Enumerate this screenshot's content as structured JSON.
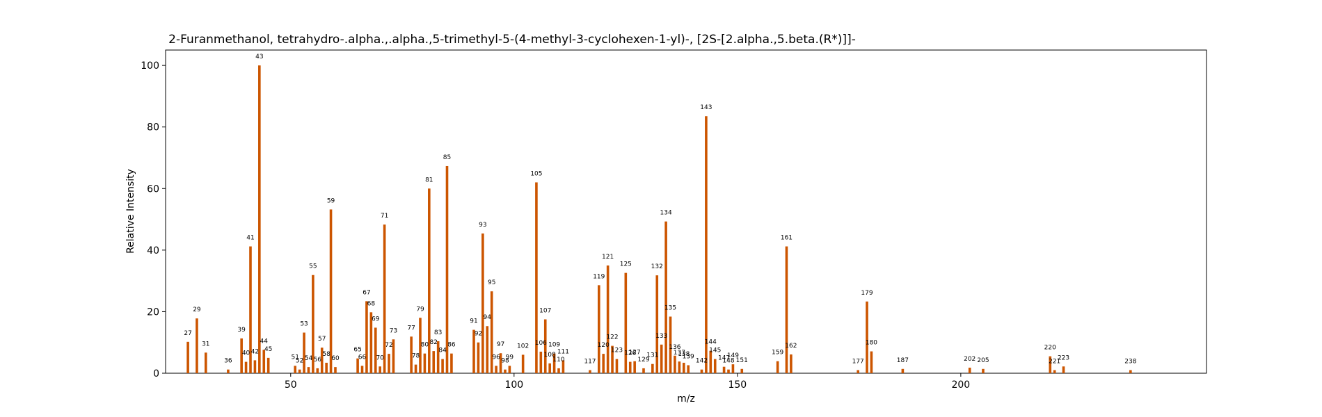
{
  "chart_data": {
    "type": "bar",
    "title": "2-Furanmethanol, tetrahydro-.alpha.,.alpha.,5-trimethyl-5-(4-methyl-3-cyclohexen-1-yl)-, [2S-[2.alpha.,5.beta.(R*)]]-",
    "xlabel": "m/z",
    "ylabel": "Relative Intensity",
    "xlim": [
      22,
      255
    ],
    "ylim": [
      0,
      105
    ],
    "xticks": [
      50,
      100,
      150,
      200
    ],
    "yticks": [
      0,
      20,
      40,
      60,
      80,
      100
    ],
    "bar_color": "#cc5500",
    "grid": false,
    "peaks": [
      {
        "mz": 27,
        "intensity": 10.2,
        "label": "27"
      },
      {
        "mz": 29,
        "intensity": 17.8,
        "label": "29"
      },
      {
        "mz": 31,
        "intensity": 6.7,
        "label": "31"
      },
      {
        "mz": 36,
        "intensity": 1.2,
        "label": "36"
      },
      {
        "mz": 39,
        "intensity": 11.3,
        "label": "39"
      },
      {
        "mz": 40,
        "intensity": 3.7,
        "label": "40"
      },
      {
        "mz": 41,
        "intensity": 41.2,
        "label": "41"
      },
      {
        "mz": 42,
        "intensity": 4.2,
        "label": "42"
      },
      {
        "mz": 43,
        "intensity": 100.0,
        "label": "43"
      },
      {
        "mz": 44,
        "intensity": 7.6,
        "label": "44"
      },
      {
        "mz": 45,
        "intensity": 5.0,
        "label": "45"
      },
      {
        "mz": 51,
        "intensity": 2.4,
        "label": "51"
      },
      {
        "mz": 52,
        "intensity": 1.2,
        "label": "52"
      },
      {
        "mz": 53,
        "intensity": 13.2,
        "label": "53"
      },
      {
        "mz": 54,
        "intensity": 2.0,
        "label": "54"
      },
      {
        "mz": 55,
        "intensity": 31.9,
        "label": "55"
      },
      {
        "mz": 56,
        "intensity": 1.6,
        "label": "56"
      },
      {
        "mz": 57,
        "intensity": 8.3,
        "label": "57"
      },
      {
        "mz": 58,
        "intensity": 3.4,
        "label": "58"
      },
      {
        "mz": 59,
        "intensity": 53.2,
        "label": "59"
      },
      {
        "mz": 60,
        "intensity": 2.0,
        "label": "60"
      },
      {
        "mz": 65,
        "intensity": 4.8,
        "label": "65"
      },
      {
        "mz": 66,
        "intensity": 2.4,
        "label": "66"
      },
      {
        "mz": 67,
        "intensity": 23.4,
        "label": "67"
      },
      {
        "mz": 68,
        "intensity": 19.8,
        "label": "68"
      },
      {
        "mz": 69,
        "intensity": 14.8,
        "label": "69"
      },
      {
        "mz": 70,
        "intensity": 2.2,
        "label": "70"
      },
      {
        "mz": 71,
        "intensity": 48.3,
        "label": "71"
      },
      {
        "mz": 72,
        "intensity": 6.3,
        "label": "72"
      },
      {
        "mz": 73,
        "intensity": 11.0,
        "label": "73"
      },
      {
        "mz": 77,
        "intensity": 11.9,
        "label": "77"
      },
      {
        "mz": 78,
        "intensity": 2.8,
        "label": "78"
      },
      {
        "mz": 79,
        "intensity": 18.0,
        "label": "79"
      },
      {
        "mz": 80,
        "intensity": 6.4,
        "label": "80"
      },
      {
        "mz": 81,
        "intensity": 60.0,
        "label": "81"
      },
      {
        "mz": 82,
        "intensity": 7.2,
        "label": "82"
      },
      {
        "mz": 83,
        "intensity": 10.4,
        "label": "83"
      },
      {
        "mz": 84,
        "intensity": 4.6,
        "label": "84"
      },
      {
        "mz": 85,
        "intensity": 67.3,
        "label": "85"
      },
      {
        "mz": 86,
        "intensity": 6.4,
        "label": "86"
      },
      {
        "mz": 91,
        "intensity": 14.1,
        "label": "91"
      },
      {
        "mz": 92,
        "intensity": 10.0,
        "label": "92"
      },
      {
        "mz": 93,
        "intensity": 45.4,
        "label": "93"
      },
      {
        "mz": 94,
        "intensity": 15.3,
        "label": "94"
      },
      {
        "mz": 95,
        "intensity": 26.6,
        "label": "95"
      },
      {
        "mz": 96,
        "intensity": 2.4,
        "label": "96"
      },
      {
        "mz": 97,
        "intensity": 6.5,
        "label": "97"
      },
      {
        "mz": 98,
        "intensity": 1.2,
        "label": "98"
      },
      {
        "mz": 99,
        "intensity": 2.4,
        "label": "99"
      },
      {
        "mz": 102,
        "intensity": 6.0,
        "label": "102"
      },
      {
        "mz": 105,
        "intensity": 62.0,
        "label": "105"
      },
      {
        "mz": 106,
        "intensity": 7.0,
        "label": "106"
      },
      {
        "mz": 107,
        "intensity": 17.5,
        "label": "107"
      },
      {
        "mz": 108,
        "intensity": 3.2,
        "label": "108"
      },
      {
        "mz": 109,
        "intensity": 6.4,
        "label": "109"
      },
      {
        "mz": 110,
        "intensity": 1.6,
        "label": "110"
      },
      {
        "mz": 111,
        "intensity": 4.2,
        "label": "111"
      },
      {
        "mz": 117,
        "intensity": 1.0,
        "label": "117"
      },
      {
        "mz": 119,
        "intensity": 28.6,
        "label": "119"
      },
      {
        "mz": 120,
        "intensity": 6.3,
        "label": "120"
      },
      {
        "mz": 121,
        "intensity": 35.0,
        "label": "121"
      },
      {
        "mz": 122,
        "intensity": 8.9,
        "label": "122"
      },
      {
        "mz": 123,
        "intensity": 4.6,
        "label": "123"
      },
      {
        "mz": 125,
        "intensity": 32.6,
        "label": "125"
      },
      {
        "mz": 126,
        "intensity": 3.7,
        "label": "126"
      },
      {
        "mz": 127,
        "intensity": 3.9,
        "label": "127"
      },
      {
        "mz": 129,
        "intensity": 1.6,
        "label": "129"
      },
      {
        "mz": 131,
        "intensity": 3.0,
        "label": "131"
      },
      {
        "mz": 132,
        "intensity": 31.8,
        "label": "132"
      },
      {
        "mz": 133,
        "intensity": 9.3,
        "label": "133"
      },
      {
        "mz": 134,
        "intensity": 49.3,
        "label": "134"
      },
      {
        "mz": 135,
        "intensity": 18.4,
        "label": "135"
      },
      {
        "mz": 136,
        "intensity": 5.7,
        "label": "136"
      },
      {
        "mz": 137,
        "intensity": 3.8,
        "label": "137"
      },
      {
        "mz": 138,
        "intensity": 3.4,
        "label": "138"
      },
      {
        "mz": 139,
        "intensity": 2.6,
        "label": "139"
      },
      {
        "mz": 142,
        "intensity": 1.2,
        "label": "142"
      },
      {
        "mz": 143,
        "intensity": 83.5,
        "label": "143"
      },
      {
        "mz": 144,
        "intensity": 7.3,
        "label": "144"
      },
      {
        "mz": 145,
        "intensity": 4.6,
        "label": "145"
      },
      {
        "mz": 147,
        "intensity": 2.1,
        "label": "147"
      },
      {
        "mz": 148,
        "intensity": 1.2,
        "label": "148"
      },
      {
        "mz": 149,
        "intensity": 2.9,
        "label": "149"
      },
      {
        "mz": 151,
        "intensity": 1.4,
        "label": "151"
      },
      {
        "mz": 159,
        "intensity": 3.9,
        "label": "159"
      },
      {
        "mz": 161,
        "intensity": 41.2,
        "label": "161"
      },
      {
        "mz": 162,
        "intensity": 6.1,
        "label": "162"
      },
      {
        "mz": 177,
        "intensity": 1.0,
        "label": "177"
      },
      {
        "mz": 179,
        "intensity": 23.3,
        "label": "179"
      },
      {
        "mz": 180,
        "intensity": 7.1,
        "label": "180"
      },
      {
        "mz": 187,
        "intensity": 1.4,
        "label": "187"
      },
      {
        "mz": 202,
        "intensity": 1.8,
        "label": "202"
      },
      {
        "mz": 205,
        "intensity": 1.4,
        "label": "205"
      },
      {
        "mz": 220,
        "intensity": 5.5,
        "label": "220"
      },
      {
        "mz": 221,
        "intensity": 1.0,
        "label": "221"
      },
      {
        "mz": 223,
        "intensity": 2.2,
        "label": "223"
      },
      {
        "mz": 238,
        "intensity": 1.0,
        "label": "238"
      }
    ]
  }
}
